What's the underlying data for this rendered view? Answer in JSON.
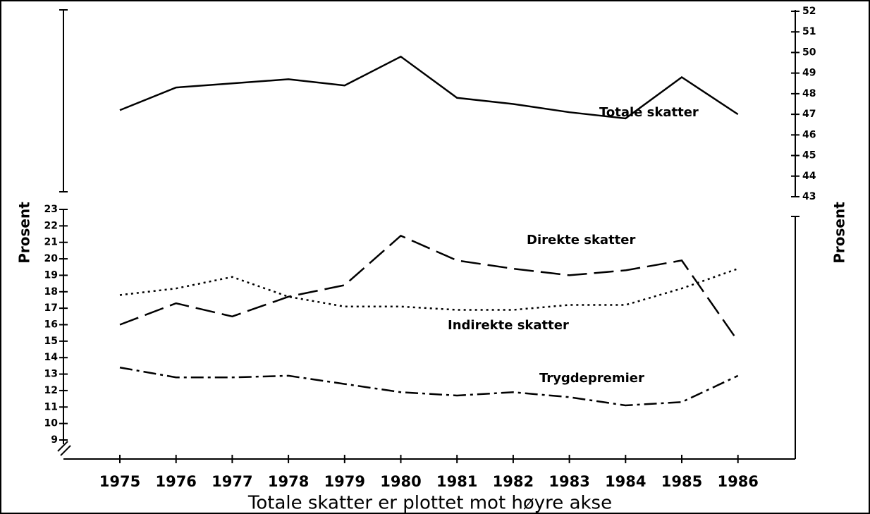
{
  "chart_data": {
    "type": "line",
    "xlabel": "Totale skatter er plottet mot høyre akse",
    "ylabel": "Prosent",
    "y2label": "Prosent",
    "categories": [
      "1975",
      "1976",
      "1977",
      "1978",
      "1979",
      "1980",
      "1981",
      "1982",
      "1983",
      "1984",
      "1985",
      "1986"
    ],
    "ylim": [
      9,
      23
    ],
    "yticks": [
      9,
      10,
      11,
      12,
      13,
      14,
      15,
      16,
      17,
      18,
      19,
      20,
      21,
      22,
      23
    ],
    "y2lim": [
      43,
      52
    ],
    "y2ticks": [
      43,
      44,
      45,
      46,
      47,
      48,
      49,
      50,
      51,
      52
    ],
    "series": [
      {
        "name": "Totale skatter",
        "color": "#000000",
        "axis": "y2",
        "dash": "solid",
        "values": [
          47.2,
          48.3,
          48.5,
          48.7,
          48.4,
          49.8,
          47.8,
          47.5,
          47.1,
          46.8,
          48.8,
          47.0
        ]
      },
      {
        "name": "Direkte skatter",
        "color": "#000000",
        "dash": "dashed",
        "values": [
          16.0,
          17.3,
          16.5,
          17.7,
          18.4,
          21.4,
          19.9,
          19.4,
          19.0,
          19.3,
          19.9,
          15.0
        ]
      },
      {
        "name": "Indirekte skatter",
        "color": "#000000",
        "dash": "dotted",
        "values": [
          17.8,
          18.2,
          18.9,
          17.7,
          17.1,
          17.1,
          16.9,
          16.9,
          17.2,
          17.2,
          18.2,
          19.4
        ]
      },
      {
        "name": "Trygdepremier",
        "color": "#000000",
        "dash": "dashdot",
        "values": [
          13.4,
          12.8,
          12.8,
          12.9,
          12.4,
          11.9,
          11.7,
          11.9,
          11.6,
          11.1,
          11.3,
          12.9
        ]
      }
    ]
  }
}
